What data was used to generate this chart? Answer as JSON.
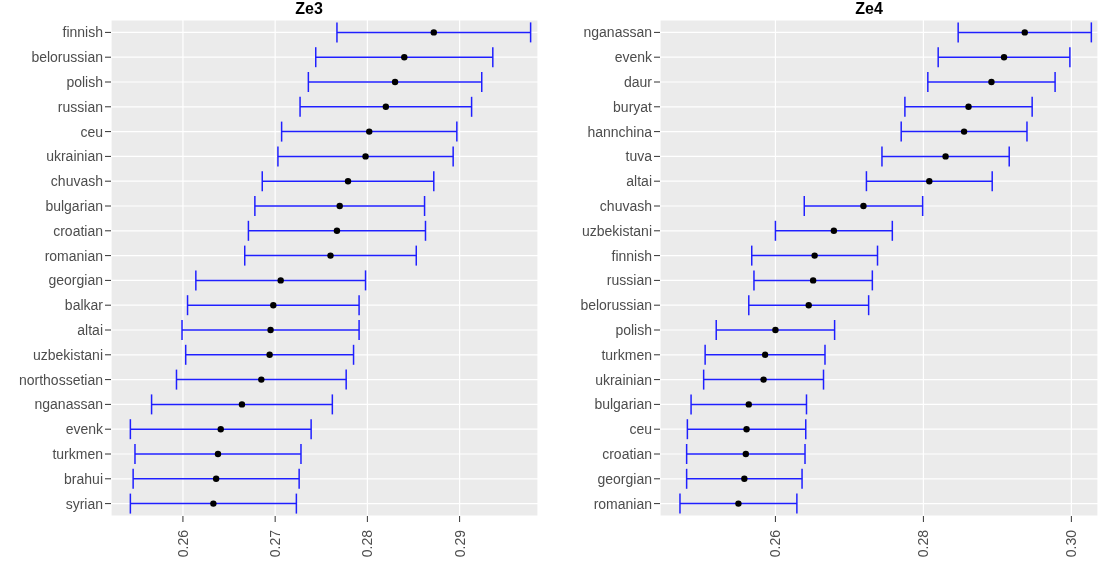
{
  "chart_data": [
    {
      "type": "scatter",
      "title": "Ze3",
      "orientation": "horizontal",
      "grid": true,
      "xlim": [
        0.2522,
        0.2985
      ],
      "xticks": [
        0.26,
        0.27,
        0.28,
        0.29
      ],
      "categories": [
        "finnish",
        "belorussian",
        "polish",
        "russian",
        "ceu",
        "ukrainian",
        "chuvash",
        "bulgarian",
        "croatian",
        "romanian",
        "georgian",
        "balkar",
        "altai",
        "uzbekistani",
        "northossetian",
        "nganassan",
        "evenk",
        "turkmen",
        "brahui",
        "syrian"
      ],
      "series": [
        {
          "color": "#000000",
          "values": [
            0.2872,
            0.284,
            0.283,
            0.282,
            0.2802,
            0.2798,
            0.2779,
            0.277,
            0.2767,
            0.276,
            0.2706,
            0.2698,
            0.2695,
            0.2694,
            0.2685,
            0.2664,
            0.2641,
            0.2638,
            0.2636,
            0.2633
          ],
          "errors": [
            0.0105,
            0.0096,
            0.0094,
            0.0093,
            0.0095,
            0.0095,
            0.0093,
            0.0092,
            0.0096,
            0.0093,
            0.0092,
            0.0093,
            0.0096,
            0.0091,
            0.0092,
            0.0098,
            0.0098,
            0.009,
            0.009,
            0.009
          ]
        }
      ]
    },
    {
      "type": "scatter",
      "title": "Ze4",
      "orientation": "horizontal",
      "grid": true,
      "xlim": [
        0.2444,
        0.3036
      ],
      "xticks": [
        0.26,
        0.28,
        {
          "value": 0.3,
          "label": "0.30"
        }
      ],
      "categories": [
        "nganassan",
        "evenk",
        "daur",
        "buryat",
        "hannchina",
        "tuva",
        "altai",
        "chuvash",
        "uzbekistani",
        "finnish",
        "russian",
        "belorussian",
        "polish",
        "turkmen",
        "ukrainian",
        "bulgarian",
        "ceu",
        "croatian",
        "georgian",
        "romanian"
      ],
      "series": [
        {
          "color": "#000000",
          "values": [
            0.2937,
            0.2909,
            0.2892,
            0.2861,
            0.2855,
            0.283,
            0.2808,
            0.2719,
            0.2679,
            0.2653,
            0.2651,
            0.2645,
            0.26,
            0.2586,
            0.2584,
            0.2564,
            0.2561,
            0.256,
            0.2558,
            0.255
          ],
          "errors": [
            0.009,
            0.0089,
            0.0086,
            0.0086,
            0.0085,
            0.0086,
            0.0085,
            0.008,
            0.0079,
            0.0085,
            0.008,
            0.0081,
            0.008,
            0.0081,
            0.0081,
            0.0078,
            0.008,
            0.008,
            0.0078,
            0.0079
          ]
        }
      ]
    }
  ]
}
